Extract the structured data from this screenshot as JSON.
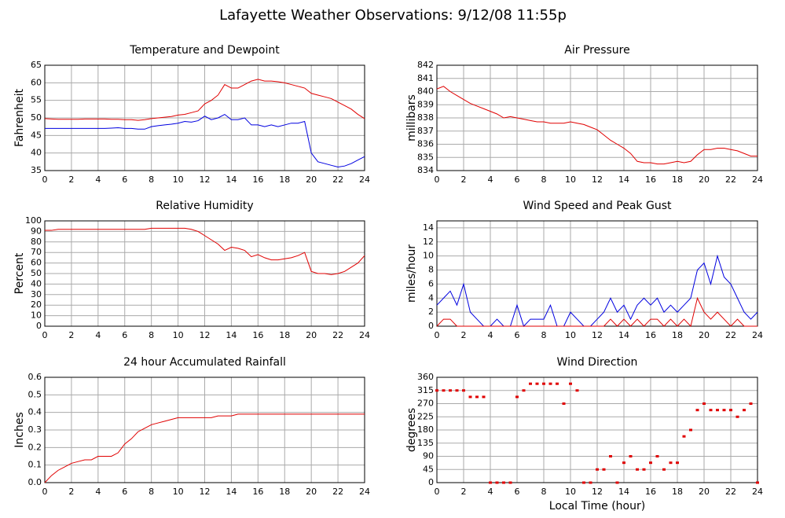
{
  "title": "Lafayette Weather Observations: 9/12/08 11:55p",
  "chart_data": [
    {
      "type": "line",
      "title": "Temperature and Dewpoint",
      "ylabel": "Fahrenheit",
      "x": [
        0,
        0.5,
        1,
        1.5,
        2,
        2.5,
        3,
        3.5,
        4,
        4.5,
        5,
        5.5,
        6,
        6.5,
        7,
        7.5,
        8,
        8.5,
        9,
        9.5,
        10,
        10.5,
        11,
        11.5,
        12,
        12.5,
        13,
        13.5,
        14,
        14.5,
        15,
        15.5,
        16,
        16.5,
        17,
        17.5,
        18,
        18.5,
        19,
        19.5,
        20,
        20.5,
        21,
        21.5,
        22,
        22.5,
        23,
        23.5,
        24
      ],
      "xlim": [
        0,
        24
      ],
      "xticks": [
        0,
        2,
        4,
        6,
        8,
        10,
        12,
        14,
        16,
        18,
        20,
        22,
        24
      ],
      "ylim": [
        35,
        65
      ],
      "yticks": [
        35,
        40,
        45,
        50,
        55,
        60,
        65
      ],
      "grid": true,
      "series": [
        {
          "color": "#e00000",
          "values": [
            49.8,
            49.7,
            49.6,
            49.6,
            49.6,
            49.6,
            49.7,
            49.7,
            49.7,
            49.7,
            49.6,
            49.6,
            49.5,
            49.5,
            49.3,
            49.5,
            49.8,
            50,
            50.2,
            50.4,
            50.8,
            51,
            51.5,
            52,
            54,
            55,
            56.5,
            59.5,
            58.5,
            58.5,
            59.5,
            60.5,
            61,
            60.5,
            60.5,
            60.3,
            60,
            59.5,
            59,
            58.5,
            57,
            56.5,
            56,
            55.5,
            54.5,
            53.5,
            52.5,
            51,
            49.8
          ]
        },
        {
          "color": "#0000e0",
          "values": [
            47,
            47,
            47,
            47,
            47,
            47,
            47,
            47,
            47,
            47,
            47.1,
            47.2,
            47,
            47,
            46.8,
            46.8,
            47.5,
            47.8,
            48,
            48.2,
            48.5,
            49,
            48.8,
            49.2,
            50.5,
            49.5,
            50,
            51,
            49.5,
            49.5,
            50,
            48,
            48,
            47.5,
            48,
            47.5,
            48,
            48.5,
            48.5,
            49,
            40,
            37.5,
            37,
            36.5,
            36,
            36.3,
            37,
            38,
            39
          ]
        }
      ]
    },
    {
      "type": "line",
      "title": "Air Pressure",
      "ylabel": "millibars",
      "x": [
        0,
        0.5,
        1,
        1.5,
        2,
        2.5,
        3,
        3.5,
        4,
        4.5,
        5,
        5.5,
        6,
        6.5,
        7,
        7.5,
        8,
        8.5,
        9,
        9.5,
        10,
        10.5,
        11,
        11.5,
        12,
        12.5,
        13,
        13.5,
        14,
        14.5,
        15,
        15.5,
        16,
        16.5,
        17,
        17.5,
        18,
        18.5,
        19,
        19.5,
        20,
        20.5,
        21,
        21.5,
        22,
        22.5,
        23,
        23.5,
        24
      ],
      "xlim": [
        0,
        24
      ],
      "xticks": [
        0,
        2,
        4,
        6,
        8,
        10,
        12,
        14,
        16,
        18,
        20,
        22,
        24
      ],
      "ylim": [
        834,
        842
      ],
      "yticks": [
        834,
        835,
        836,
        837,
        838,
        839,
        840,
        841,
        842
      ],
      "grid": true,
      "series": [
        {
          "color": "#e00000",
          "values": [
            840.2,
            840.4,
            840,
            839.7,
            839.4,
            839.1,
            838.9,
            838.7,
            838.5,
            838.3,
            838,
            838.1,
            838,
            837.9,
            837.8,
            837.7,
            837.7,
            837.6,
            837.6,
            837.6,
            837.7,
            837.6,
            837.5,
            837.3,
            837.1,
            836.7,
            836.3,
            836,
            835.7,
            835.3,
            834.7,
            834.6,
            834.6,
            834.5,
            834.5,
            834.6,
            834.7,
            834.6,
            834.7,
            835.2,
            835.6,
            835.6,
            835.7,
            835.7,
            835.6,
            835.5,
            835.3,
            835.1,
            835.1
          ]
        }
      ]
    },
    {
      "type": "line",
      "title": "Relative Humidity",
      "ylabel": "Percent",
      "x": [
        0,
        0.5,
        1,
        1.5,
        2,
        2.5,
        3,
        3.5,
        4,
        4.5,
        5,
        5.5,
        6,
        6.5,
        7,
        7.5,
        8,
        8.5,
        9,
        9.5,
        10,
        10.5,
        11,
        11.5,
        12,
        12.5,
        13,
        13.5,
        14,
        14.5,
        15,
        15.5,
        16,
        16.5,
        17,
        17.5,
        18,
        18.5,
        19,
        19.5,
        20,
        20.5,
        21,
        21.5,
        22,
        22.5,
        23,
        23.5,
        24
      ],
      "xlim": [
        0,
        24
      ],
      "xticks": [
        0,
        2,
        4,
        6,
        8,
        10,
        12,
        14,
        16,
        18,
        20,
        22,
        24
      ],
      "ylim": [
        0,
        100
      ],
      "yticks": [
        0,
        10,
        20,
        30,
        40,
        50,
        60,
        70,
        80,
        90,
        100
      ],
      "grid": true,
      "series": [
        {
          "color": "#e00000",
          "values": [
            91,
            91,
            92,
            92,
            92,
            92,
            92,
            92,
            92,
            92,
            92,
            92,
            92,
            92,
            92,
            92,
            93,
            93,
            93,
            93,
            93,
            93,
            92,
            90,
            86,
            82,
            78,
            72,
            75,
            74,
            72,
            66,
            68,
            65,
            63,
            63,
            64,
            65,
            67,
            70,
            52,
            50,
            50,
            49,
            50,
            52,
            56,
            60,
            67
          ]
        }
      ]
    },
    {
      "type": "line",
      "title": "Wind Speed and Peak Gust",
      "ylabel": "miles/hour",
      "x": [
        0,
        0.5,
        1,
        1.5,
        2,
        2.5,
        3,
        3.5,
        4,
        4.5,
        5,
        5.5,
        6,
        6.5,
        7,
        7.5,
        8,
        8.5,
        9,
        9.5,
        10,
        10.5,
        11,
        11.5,
        12,
        12.5,
        13,
        13.5,
        14,
        14.5,
        15,
        15.5,
        16,
        16.5,
        17,
        17.5,
        18,
        18.5,
        19,
        19.5,
        20,
        20.5,
        21,
        21.5,
        22,
        22.5,
        23,
        23.5,
        24
      ],
      "xlim": [
        0,
        24
      ],
      "xticks": [
        0,
        2,
        4,
        6,
        8,
        10,
        12,
        14,
        16,
        18,
        20,
        22,
        24
      ],
      "ylim": [
        0,
        15
      ],
      "yticks": [
        0,
        2,
        4,
        6,
        8,
        10,
        12,
        14
      ],
      "grid": true,
      "series": [
        {
          "color": "#0000e0",
          "values": [
            3,
            4,
            5,
            3,
            6,
            2,
            1,
            0,
            0,
            1,
            0,
            0,
            3,
            0,
            1,
            1,
            1,
            3,
            0,
            0,
            2,
            1,
            0,
            0,
            1,
            2,
            4,
            2,
            3,
            1,
            3,
            4,
            3,
            4,
            2,
            3,
            2,
            3,
            4,
            8,
            9,
            6,
            10,
            7,
            6,
            4,
            2,
            1,
            2
          ]
        },
        {
          "color": "#e00000",
          "values": [
            0,
            1,
            1,
            0,
            0,
            0,
            0,
            0,
            0,
            0,
            0,
            0,
            0,
            0,
            0,
            0,
            0,
            0,
            0,
            0,
            0,
            0,
            0,
            0,
            0,
            0,
            1,
            0,
            1,
            0,
            1,
            0,
            1,
            1,
            0,
            1,
            0,
            1,
            0,
            4,
            2,
            1,
            2,
            1,
            0,
            1,
            0,
            0,
            0
          ]
        }
      ]
    },
    {
      "type": "line",
      "title": "24 hour Accumulated Rainfall",
      "ylabel": "Inches",
      "x": [
        0,
        0.5,
        1,
        1.5,
        2,
        2.5,
        3,
        3.5,
        4,
        4.5,
        5,
        5.5,
        6,
        6.5,
        7,
        7.5,
        8,
        8.5,
        9,
        9.5,
        10,
        10.5,
        11,
        11.5,
        12,
        12.5,
        13,
        13.5,
        14,
        14.5,
        15,
        15.5,
        16,
        16.5,
        17,
        17.5,
        18,
        18.5,
        19,
        19.5,
        20,
        20.5,
        21,
        21.5,
        22,
        22.5,
        23,
        23.5,
        24
      ],
      "xlim": [
        0,
        24
      ],
      "xticks": [
        0,
        2,
        4,
        6,
        8,
        10,
        12,
        14,
        16,
        18,
        20,
        22,
        24
      ],
      "ylim": [
        0,
        0.6
      ],
      "yticks": [
        {
          "value": 0,
          "label": "0.0"
        },
        0.1,
        0.2,
        0.3,
        0.4,
        0.5,
        0.6
      ],
      "grid": true,
      "series": [
        {
          "color": "#e00000",
          "values": [
            0,
            0.04,
            0.07,
            0.09,
            0.11,
            0.12,
            0.13,
            0.13,
            0.15,
            0.15,
            0.15,
            0.17,
            0.22,
            0.25,
            0.29,
            0.31,
            0.33,
            0.34,
            0.35,
            0.36,
            0.37,
            0.37,
            0.37,
            0.37,
            0.37,
            0.37,
            0.38,
            0.38,
            0.38,
            0.39,
            0.39,
            0.39,
            0.39,
            0.39,
            0.39,
            0.39,
            0.39,
            0.39,
            0.39,
            0.39,
            0.39,
            0.39,
            0.39,
            0.39,
            0.39,
            0.39,
            0.39,
            0.39,
            0.39
          ]
        }
      ]
    },
    {
      "type": "scatter",
      "title": "Wind Direction",
      "ylabel": "degrees",
      "xlabel": "Local Time (hour)",
      "x": [
        0,
        0.5,
        1,
        1.5,
        2,
        2.5,
        3,
        3.5,
        4,
        4.5,
        5,
        5.5,
        6,
        6.5,
        7,
        7.5,
        8,
        8.5,
        9,
        9.5,
        10,
        10.5,
        11,
        11.5,
        12,
        12.5,
        13,
        13.5,
        14,
        14.5,
        15,
        15.5,
        16,
        16.5,
        17,
        17.5,
        18,
        18.5,
        19,
        19.5,
        20,
        20.5,
        21,
        21.5,
        22,
        22.5,
        23,
        23.5,
        24
      ],
      "xlim": [
        0,
        24
      ],
      "xticks": [
        0,
        2,
        4,
        6,
        8,
        10,
        12,
        14,
        16,
        18,
        20,
        22,
        24
      ],
      "ylim": [
        0,
        360
      ],
      "yticks": [
        0,
        45,
        90,
        135,
        180,
        225,
        270,
        315,
        360
      ],
      "grid": true,
      "series": [
        {
          "color": "#e00000",
          "values": [
            315,
            315,
            315,
            315,
            315,
            293,
            293,
            293,
            0,
            0,
            0,
            0,
            293,
            315,
            338,
            338,
            338,
            338,
            338,
            270,
            338,
            315,
            0,
            0,
            45,
            45,
            90,
            0,
            68,
            90,
            45,
            45,
            68,
            90,
            45,
            68,
            68,
            158,
            180,
            248,
            270,
            248,
            248,
            248,
            248,
            225,
            248,
            270,
            0
          ]
        }
      ]
    }
  ]
}
